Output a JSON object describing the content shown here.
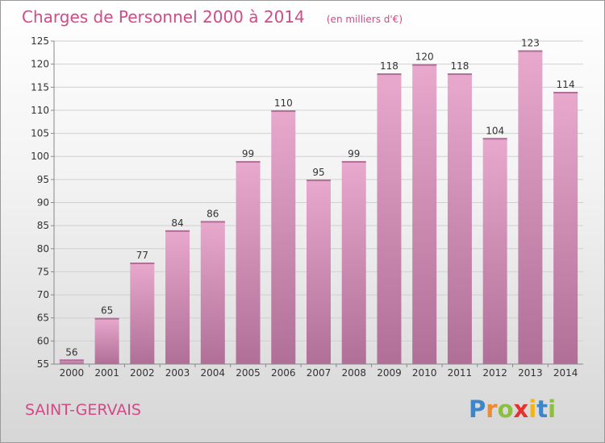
{
  "chart_data": {
    "type": "bar",
    "title": "Charges de Personnel 2000 à 2014",
    "subtitle": "(en milliers d'€)",
    "categories": [
      "2000",
      "2001",
      "2002",
      "2003",
      "2004",
      "2005",
      "2006",
      "2007",
      "2008",
      "2009",
      "2010",
      "2011",
      "2012",
      "2013",
      "2014"
    ],
    "values": [
      56,
      65,
      77,
      84,
      86,
      99,
      110,
      95,
      99,
      118,
      120,
      118,
      104,
      123,
      114
    ],
    "ylim": [
      55,
      125
    ],
    "yticks": [
      55,
      60,
      65,
      70,
      75,
      80,
      85,
      90,
      95,
      100,
      105,
      110,
      115,
      120,
      125
    ],
    "grid": true,
    "bar_color_top": "#e8a9cd",
    "bar_color_bottom": "#b06f97",
    "title_color": "#d24a86"
  },
  "commune": "SAINT-GERVAIS",
  "logo": {
    "letters": [
      "P",
      "r",
      "o",
      "x",
      "i",
      "t",
      "i"
    ],
    "colors": [
      "#3f86c8",
      "#f08a2a",
      "#8cbf3f",
      "#e6322f",
      "#f2b417",
      "#3f86c8",
      "#8cbf3f"
    ]
  }
}
